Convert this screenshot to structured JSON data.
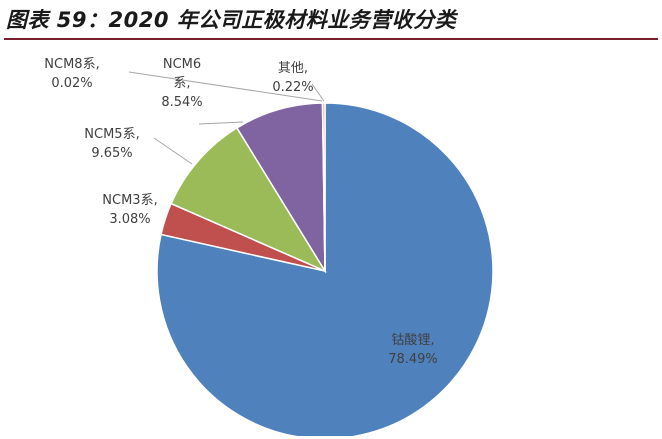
{
  "title": "图表 59：2020 年公司正极材料业务营收分类",
  "chart_data": {
    "type": "pie",
    "title": "",
    "categories": [
      "钴酸锂",
      "NCM3系",
      "NCM5系",
      "NCM6系",
      "NCM8系",
      "其他"
    ],
    "values": [
      78.49,
      3.08,
      9.65,
      8.54,
      0.02,
      0.22
    ],
    "value_labels": [
      "78.49%",
      "3.08%",
      "9.65%",
      "8.54%",
      "0.02%",
      "0.22%"
    ],
    "label_names": [
      "钴酸锂,",
      "NCM3系,",
      "NCM5系,",
      "NCM6",
      "NCM8系,",
      "其他,"
    ],
    "label_names_line2": [
      "",
      "",
      "",
      "系,",
      "",
      ""
    ],
    "colors": [
      "#4f81bd",
      "#c0504d",
      "#9bbb59",
      "#8064a2",
      "#4bacc6",
      "#f79646"
    ],
    "start_angle_deg": 0,
    "direction": "clockwise",
    "legend": "none"
  }
}
